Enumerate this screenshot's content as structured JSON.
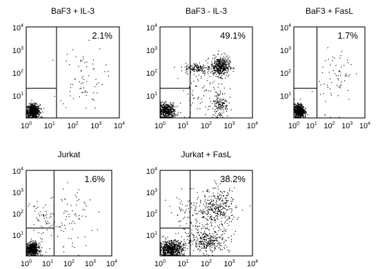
{
  "chart_data": [
    {
      "type": "scatter",
      "title": "BaF3 + IL-3",
      "annotation": "2.1%",
      "x_tick_labels": [
        "10",
        "10",
        "10",
        "10",
        "10"
      ],
      "x_tick_exponents": [
        "0",
        "1",
        "2",
        "3",
        "4"
      ],
      "y_tick_labels": [
        "10",
        "10",
        "10",
        "10"
      ],
      "y_tick_exponents": [
        "1",
        "2",
        "3",
        "4"
      ],
      "xlim": [
        1,
        10000
      ],
      "ylim": [
        1,
        10000
      ],
      "log_axes": true,
      "grid": false,
      "quadrant_x": 20,
      "lower_left_gate_y": 20,
      "clusters": [
        {
          "x": 2,
          "y": 2,
          "spread_x": 1.4,
          "spread_y": 1.4,
          "count": 700
        },
        {
          "x": 250,
          "y": 60,
          "spread_x": 3,
          "spread_y": 5,
          "count": 70
        }
      ]
    },
    {
      "type": "scatter",
      "title": "BaF3 - IL-3",
      "annotation": "49.1%",
      "x_tick_labels": [
        "10",
        "10",
        "10",
        "10",
        "10"
      ],
      "x_tick_exponents": [
        "0",
        "1",
        "2",
        "3",
        "4"
      ],
      "y_tick_labels": [
        "10",
        "10",
        "10",
        "10"
      ],
      "y_tick_exponents": [
        "1",
        "2",
        "3",
        "4"
      ],
      "xlim": [
        1,
        10000
      ],
      "ylim": [
        1,
        10000
      ],
      "log_axes": true,
      "grid": false,
      "quadrant_x": 20,
      "lower_left_gate_y": 20,
      "clusters": [
        {
          "x": 2,
          "y": 2,
          "spread_x": 1.5,
          "spread_y": 1.5,
          "count": 450
        },
        {
          "x": 400,
          "y": 180,
          "spread_x": 1.6,
          "spread_y": 1.6,
          "count": 450
        },
        {
          "x": 40,
          "y": 150,
          "spread_x": 1.8,
          "spread_y": 1.3,
          "count": 130
        },
        {
          "x": 400,
          "y": 4,
          "spread_x": 1.5,
          "spread_y": 2,
          "count": 140
        },
        {
          "x": 60,
          "y": 20,
          "spread_x": 3,
          "spread_y": 4,
          "count": 90
        }
      ]
    },
    {
      "type": "scatter",
      "title": "BaF3 + FasL",
      "annotation": "1.7%",
      "x_tick_labels": [
        "10",
        "10",
        "10",
        "10",
        "10"
      ],
      "x_tick_exponents": [
        "0",
        "1",
        "2",
        "3",
        "4"
      ],
      "y_tick_labels": [
        "10",
        "10",
        "10",
        "10"
      ],
      "y_tick_exponents": [
        "1",
        "2",
        "3",
        "4"
      ],
      "xlim": [
        1,
        10000
      ],
      "ylim": [
        1,
        10000
      ],
      "log_axes": true,
      "grid": false,
      "quadrant_x": 20,
      "lower_left_gate_y": 20,
      "clusters": [
        {
          "x": 2,
          "y": 2,
          "spread_x": 1.4,
          "spread_y": 1.4,
          "count": 700
        },
        {
          "x": 250,
          "y": 60,
          "spread_x": 3,
          "spread_y": 5,
          "count": 65
        }
      ]
    },
    {
      "type": "scatter",
      "title": "Jurkat",
      "annotation": "1.6%",
      "x_tick_labels": [
        "10",
        "10",
        "10",
        "10",
        "10"
      ],
      "x_tick_exponents": [
        "0",
        "1",
        "2",
        "3",
        "4"
      ],
      "y_tick_labels": [
        "10",
        "10",
        "10",
        "10"
      ],
      "y_tick_exponents": [
        "1",
        "2",
        "3",
        "4"
      ],
      "xlim": [
        1,
        10000
      ],
      "ylim": [
        1,
        10000
      ],
      "log_axes": true,
      "grid": false,
      "quadrant_x": 20,
      "lower_left_gate_y": 20,
      "clusters": [
        {
          "x": 2,
          "y": 2,
          "spread_x": 1.4,
          "spread_y": 1.4,
          "count": 650
        },
        {
          "x": 6,
          "y": 40,
          "spread_x": 2,
          "spread_y": 4,
          "count": 60
        },
        {
          "x": 150,
          "y": 50,
          "spread_x": 3,
          "spread_y": 5,
          "count": 70
        }
      ]
    },
    {
      "type": "scatter",
      "title": "Jurkat + FasL",
      "annotation": "38.2%",
      "x_tick_labels": [
        "10",
        "10",
        "10",
        "10",
        "10"
      ],
      "x_tick_exponents": [
        "0",
        "1",
        "2",
        "3",
        "4"
      ],
      "y_tick_labels": [
        "10",
        "10",
        "10",
        "10"
      ],
      "y_tick_exponents": [
        "1",
        "2",
        "3",
        "4"
      ],
      "xlim": [
        1,
        10000
      ],
      "ylim": [
        1,
        10000
      ],
      "log_axes": true,
      "grid": false,
      "quadrant_x": 20,
      "lower_left_gate_y": 20,
      "clusters": [
        {
          "x": 3,
          "y": 2,
          "spread_x": 1.8,
          "spread_y": 1.6,
          "count": 650
        },
        {
          "x": 120,
          "y": 5,
          "spread_x": 3,
          "spread_y": 1.8,
          "count": 300
        },
        {
          "x": 300,
          "y": 150,
          "spread_x": 2.5,
          "spread_y": 3,
          "count": 350
        },
        {
          "x": 20,
          "y": 50,
          "spread_x": 3,
          "spread_y": 4,
          "count": 100
        }
      ]
    }
  ]
}
